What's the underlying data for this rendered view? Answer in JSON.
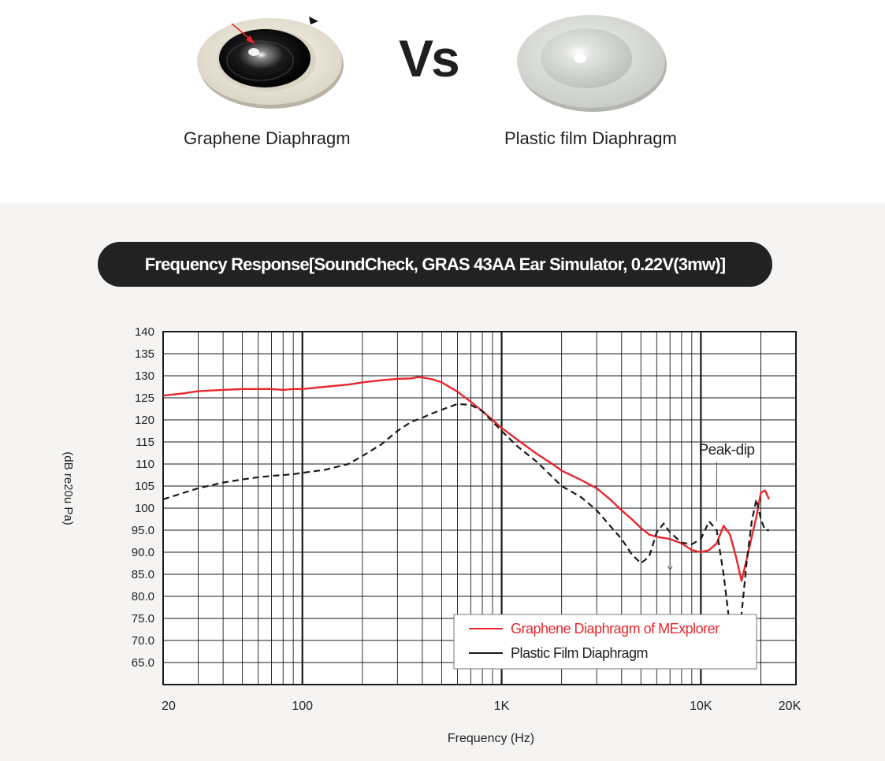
{
  "header": {
    "left_product": {
      "label": "Graphene Diaphragm",
      "image": "graphene-diaphragm-illustration"
    },
    "vs_text": "Vs",
    "right_product": {
      "label": "Plastic film Diaphragm",
      "image": "plastic-diaphragm-illustration"
    }
  },
  "colors": {
    "graphene": "#e8262d",
    "plastic": "#1a1a1a",
    "panel_bg": "#f5f4f2",
    "pill_bg": "#222222"
  },
  "chart_data": {
    "type": "line",
    "title": "Frequency Response[SoundCheck, GRAS 43AA Ear Simulator, 0.22V(3mw)]",
    "xlabel": "Frequency (Hz)",
    "ylabel": "(dB re20u Pa)",
    "xscale": "log",
    "xlim": [
      20,
      30000
    ],
    "ylim": [
      60,
      140
    ],
    "grid": true,
    "x_tick_labels": [
      {
        "value": 20,
        "label": "20"
      },
      {
        "value": 100,
        "label": "100"
      },
      {
        "value": 1000,
        "label": "1K"
      },
      {
        "value": 10000,
        "label": "10K"
      },
      {
        "value": 20000,
        "label": "20K"
      }
    ],
    "y_tick_labels": [
      "140",
      "135",
      "130",
      "125",
      "120",
      "115",
      "110",
      "105",
      "100",
      "95.0",
      "90.0",
      "85.0",
      "80.0",
      "75.0",
      "70.0",
      "65.0"
    ],
    "annotation": {
      "text": "Peak-dip",
      "x": [
        7000,
        12000
      ],
      "y": 113
    },
    "legend_position": "bottom-right",
    "series": [
      {
        "name": "Graphene Diaphragm of MExplorer",
        "style": "solid",
        "x": [
          20,
          25,
          30,
          40,
          50,
          60,
          70,
          80,
          90,
          100,
          130,
          170,
          200,
          250,
          300,
          350,
          380,
          400,
          450,
          500,
          600,
          700,
          800,
          1000,
          1200,
          1500,
          1800,
          2000,
          2500,
          3000,
          3500,
          4000,
          4500,
          5000,
          5500,
          6000,
          7000,
          8000,
          9000,
          10000,
          11000,
          12000,
          13000,
          14000,
          15000,
          16000,
          17000,
          18000,
          19000,
          20000,
          21000,
          22000
        ],
        "y": [
          125.5,
          126,
          126.5,
          126.8,
          127,
          127,
          127,
          126.8,
          127,
          127,
          127.5,
          128,
          128.5,
          129,
          129.3,
          129.4,
          129.7,
          129.6,
          129.2,
          128.5,
          126.4,
          124.1,
          122,
          118.2,
          115.5,
          112.3,
          110,
          108.5,
          106.4,
          104.5,
          102,
          99.5,
          97.5,
          95.5,
          94,
          93.5,
          93,
          92,
          90.5,
          90,
          90.5,
          92,
          96,
          94,
          89,
          83.5,
          88.5,
          93.5,
          98,
          103.5,
          104,
          102
        ]
      },
      {
        "name": "Plastic Film Diaphragm",
        "style": "dashed",
        "x": [
          20,
          30,
          40,
          50,
          60,
          70,
          80,
          90,
          100,
          130,
          170,
          200,
          250,
          300,
          350,
          400,
          450,
          500,
          600,
          700,
          800,
          1000,
          1200,
          1500,
          2000,
          2500,
          3000,
          3500,
          4000,
          4500,
          5000,
          5500,
          6000,
          6500,
          7000,
          8000,
          9000,
          10000,
          11000,
          12000,
          13000,
          14000,
          15000,
          16000,
          17000,
          18000,
          19000,
          20000,
          21000,
          22000
        ],
        "y": [
          102,
          104.5,
          105.8,
          106.5,
          107,
          107.3,
          107.5,
          107.7,
          108,
          108.7,
          110,
          111.8,
          114.5,
          117.5,
          119.5,
          120.5,
          121.5,
          122.3,
          123.6,
          123.4,
          122,
          117.5,
          114,
          110.5,
          105,
          102.5,
          99.5,
          96,
          93,
          89.5,
          87.5,
          89,
          94.5,
          96.5,
          94.5,
          92.2,
          91.8,
          93,
          97,
          95,
          85,
          73,
          68,
          76,
          88,
          97,
          102,
          97.5,
          95,
          95
        ]
      }
    ]
  }
}
